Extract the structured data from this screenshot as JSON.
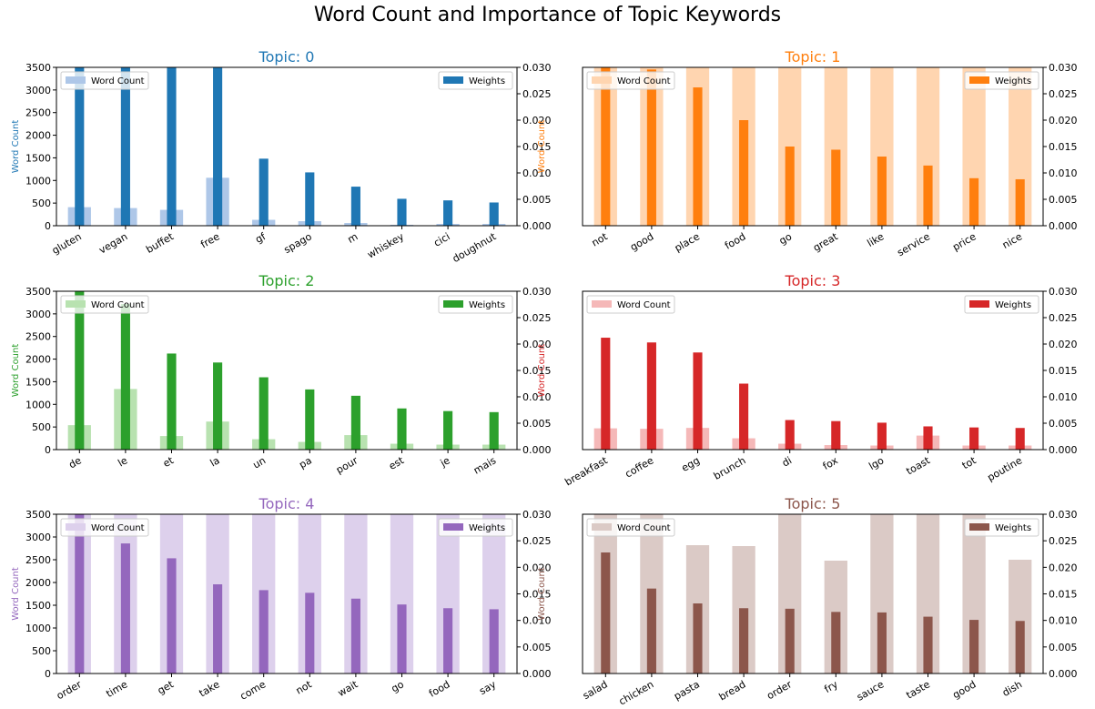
{
  "figure_title": "Word Count and Importance of Topic Keywords",
  "chart_data": [
    {
      "type": "bar",
      "title": "Topic: 0",
      "color": "#1f77b4",
      "light_color": "#aec7e8",
      "ylabel_left": "Word Count",
      "ylim_left": [
        0,
        3500
      ],
      "ylim_right": [
        0,
        0.03
      ],
      "yticks_left": [
        "0",
        "500",
        "1000",
        "1500",
        "2000",
        "2500",
        "3000",
        "3500"
      ],
      "yticks_right": [
        "0.000",
        "0.005",
        "0.010",
        "0.015",
        "0.020",
        "0.025",
        "0.030"
      ],
      "categories": [
        "gluten",
        "vegan",
        "buffet",
        "free",
        "gf",
        "spago",
        "m",
        "whiskey",
        "cici",
        "doughnut"
      ],
      "series": [
        {
          "name": "Word Count",
          "axis": "left",
          "values": [
            410,
            390,
            350,
            1060,
            130,
            100,
            60,
            20,
            40,
            40
          ]
        },
        {
          "name": "Weights",
          "axis": "right",
          "values": [
            0.0305,
            0.0305,
            0.0305,
            0.0305,
            0.0127,
            0.0101,
            0.0074,
            0.0051,
            0.0048,
            0.0044
          ]
        }
      ],
      "legend_left": "Word Count",
      "legend_right": "Weights"
    },
    {
      "type": "bar",
      "title": "Topic: 1",
      "color": "#ff7f0e",
      "light_color": "#ffd5b0",
      "ylabel_left": "Word Count",
      "ylim_left": [
        0,
        3500
      ],
      "ylim_right": [
        0,
        0.03
      ],
      "yticks_left": [],
      "yticks_right": [
        "0.000",
        "0.005",
        "0.010",
        "0.015",
        "0.020",
        "0.025",
        "0.030"
      ],
      "categories": [
        "not",
        "good",
        "place",
        "food",
        "go",
        "great",
        "like",
        "service",
        "price",
        "nice"
      ],
      "series": [
        {
          "name": "Word Count",
          "axis": "left",
          "values": [
            3600,
            3600,
            3600,
            3600,
            3600,
            3600,
            3600,
            3600,
            3600,
            3600
          ]
        },
        {
          "name": "Weights",
          "axis": "right",
          "values": [
            0.0305,
            0.0296,
            0.0262,
            0.02,
            0.015,
            0.0144,
            0.0131,
            0.0114,
            0.009,
            0.0088
          ]
        }
      ],
      "legend_left": "Word Count",
      "legend_right": "Weights"
    },
    {
      "type": "bar",
      "title": "Topic: 2",
      "color": "#2ca02c",
      "light_color": "#b8e2b0",
      "ylabel_left": "Word Count",
      "ylim_left": [
        0,
        3500
      ],
      "ylim_right": [
        0,
        0.03
      ],
      "yticks_left": [
        "0",
        "500",
        "1000",
        "1500",
        "2000",
        "2500",
        "3000",
        "3500"
      ],
      "yticks_right": [
        "0.000",
        "0.005",
        "0.010",
        "0.015",
        "0.020",
        "0.025",
        "0.030"
      ],
      "categories": [
        "de",
        "le",
        "et",
        "la",
        "un",
        "pa",
        "pour",
        "est",
        "je",
        "mais"
      ],
      "series": [
        {
          "name": "Word Count",
          "axis": "left",
          "values": [
            540,
            1340,
            300,
            620,
            230,
            170,
            320,
            130,
            110,
            110
          ]
        },
        {
          "name": "Weights",
          "axis": "right",
          "values": [
            0.0305,
            0.0276,
            0.0182,
            0.0165,
            0.0137,
            0.0114,
            0.0102,
            0.0078,
            0.0073,
            0.0071
          ]
        }
      ],
      "legend_left": "Word Count",
      "legend_right": "Weights"
    },
    {
      "type": "bar",
      "title": "Topic: 3",
      "color": "#d62728",
      "light_color": "#f5b8b8",
      "ylabel_left": "Word Count",
      "ylim_left": [
        0,
        3500
      ],
      "ylim_right": [
        0,
        0.03
      ],
      "yticks_left": [],
      "yticks_right": [
        "0.000",
        "0.005",
        "0.010",
        "0.015",
        "0.020",
        "0.025",
        "0.030"
      ],
      "categories": [
        "breakfast",
        "coffee",
        "egg",
        "brunch",
        "di",
        "fox",
        "lgo",
        "toast",
        "tot",
        "poutine"
      ],
      "series": [
        {
          "name": "Word Count",
          "axis": "left",
          "values": [
            470,
            460,
            480,
            250,
            130,
            100,
            90,
            310,
            90,
            90
          ]
        },
        {
          "name": "Weights",
          "axis": "right",
          "values": [
            0.0212,
            0.0203,
            0.0184,
            0.0125,
            0.0056,
            0.0054,
            0.0051,
            0.0044,
            0.0042,
            0.0041
          ]
        }
      ],
      "legend_left": "Word Count",
      "legend_right": "Weights"
    },
    {
      "type": "bar",
      "title": "Topic: 4",
      "color": "#9467bd",
      "light_color": "#ddd0ec",
      "ylabel_left": "Word Count",
      "ylim_left": [
        0,
        3500
      ],
      "ylim_right": [
        0,
        0.03
      ],
      "yticks_left": [
        "0",
        "500",
        "1000",
        "1500",
        "2000",
        "2500",
        "3000",
        "3500"
      ],
      "yticks_right": [
        "0.000",
        "0.005",
        "0.010",
        "0.015",
        "0.020",
        "0.025",
        "0.030"
      ],
      "categories": [
        "order",
        "time",
        "get",
        "take",
        "come",
        "not",
        "wait",
        "go",
        "food",
        "say"
      ],
      "series": [
        {
          "name": "Word Count",
          "axis": "left",
          "values": [
            3600,
            3600,
            3600,
            3600,
            3600,
            3600,
            3600,
            3600,
            3600,
            3600
          ]
        },
        {
          "name": "Weights",
          "axis": "right",
          "values": [
            0.0305,
            0.0245,
            0.0217,
            0.0168,
            0.0157,
            0.0152,
            0.0141,
            0.013,
            0.0123,
            0.0121
          ]
        }
      ],
      "legend_left": "Word Count",
      "legend_right": "Weights"
    },
    {
      "type": "bar",
      "title": "Topic: 5",
      "color": "#8c564b",
      "light_color": "#dbcac6",
      "ylabel_left": "Word Count",
      "ylim_left": [
        0,
        3500
      ],
      "ylim_right": [
        0,
        0.03
      ],
      "yticks_left": [],
      "yticks_right": [
        "0.000",
        "0.005",
        "0.010",
        "0.015",
        "0.020",
        "0.025",
        "0.030"
      ],
      "categories": [
        "salad",
        "chicken",
        "pasta",
        "bread",
        "order",
        "fry",
        "sauce",
        "taste",
        "good",
        "dish"
      ],
      "series": [
        {
          "name": "Word Count",
          "axis": "left",
          "values": [
            3600,
            3600,
            2820,
            2800,
            3600,
            2480,
            3600,
            3600,
            3600,
            2500
          ]
        },
        {
          "name": "Weights",
          "axis": "right",
          "values": [
            0.0228,
            0.016,
            0.0132,
            0.0123,
            0.0122,
            0.0116,
            0.0115,
            0.0107,
            0.0101,
            0.0099
          ]
        }
      ],
      "legend_left": "Word Count",
      "legend_right": "Weights"
    }
  ]
}
